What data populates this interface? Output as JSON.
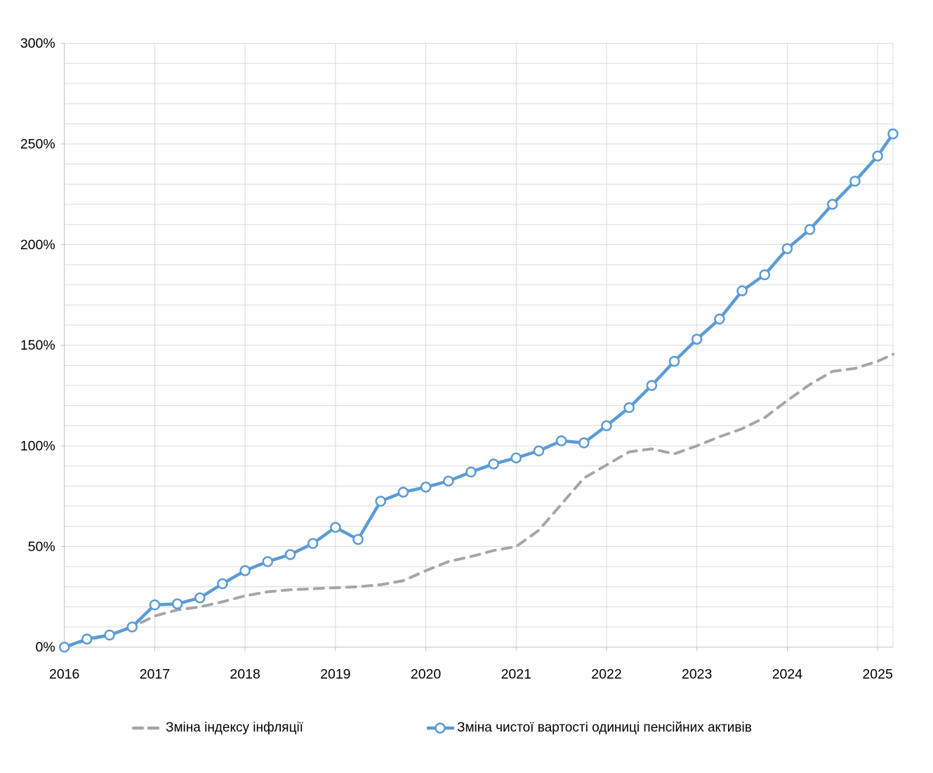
{
  "chart_data": {
    "type": "line",
    "title": "",
    "xlabel": "",
    "ylabel": "",
    "ylim": [
      0,
      300
    ],
    "y_tick_step": 50,
    "y_minor_step": 10,
    "y_tick_labels": [
      "0%",
      "50%",
      "100%",
      "150%",
      "200%",
      "250%",
      "300%"
    ],
    "x_tick_labels": [
      "2016",
      "2017",
      "2018",
      "2019",
      "2020",
      "2021",
      "2022",
      "2023",
      "2024",
      "2025"
    ],
    "x_tick_values": [
      2016,
      2017,
      2018,
      2019,
      2020,
      2021,
      2022,
      2023,
      2024,
      2025
    ],
    "xlim": [
      2016,
      2025.17
    ],
    "grid": "both",
    "legend_position": "bottom",
    "x": [
      2016,
      2016.25,
      2016.5,
      2016.75,
      2017,
      2017.25,
      2017.5,
      2017.75,
      2018,
      2018.25,
      2018.5,
      2018.75,
      2019,
      2019.25,
      2019.5,
      2019.75,
      2020,
      2020.25,
      2020.5,
      2020.75,
      2021,
      2021.25,
      2021.5,
      2021.75,
      2022,
      2022.25,
      2022.5,
      2022.75,
      2023,
      2023.25,
      2023.5,
      2023.75,
      2024,
      2024.25,
      2024.5,
      2024.75,
      2025,
      2025.17
    ],
    "series": [
      {
        "name": "Зміна індексу інфляції",
        "color": "#a6a6a6",
        "style": "dashed",
        "values": [
          0,
          3.5,
          6,
          10,
          15.5,
          18.5,
          20,
          22.5,
          25.5,
          27.5,
          28.5,
          29,
          29.5,
          30,
          31,
          33,
          38,
          42.5,
          45,
          48,
          50,
          58,
          71,
          84,
          90.5,
          97,
          98.5,
          96,
          100,
          104.5,
          108.5,
          114,
          122.5,
          130.5,
          137,
          138.5,
          142,
          145.5
        ]
      },
      {
        "name": "Зміна чистої вартості одиниці пенсійних активів",
        "color": "#5b9bd5",
        "style": "solid-markers",
        "marker": "circle",
        "values": [
          0,
          4,
          6,
          10,
          21,
          21.5,
          24.5,
          31.5,
          38,
          42.5,
          46,
          51.5,
          59.5,
          53.5,
          72.5,
          77,
          79.5,
          82.5,
          87,
          91,
          94,
          97.5,
          102.5,
          101.5,
          110,
          119,
          130,
          142,
          153,
          163,
          177,
          185,
          198,
          207.5,
          220,
          231.5,
          244,
          255
        ]
      }
    ]
  },
  "colors": {
    "gridline": "#d9d9d9",
    "axis_line": "#bfbfbf",
    "tick_text": "#000000",
    "inflation_line": "#a6a6a6",
    "unit_value_line": "#5b9bd5",
    "marker_fill": "#ffffff"
  }
}
